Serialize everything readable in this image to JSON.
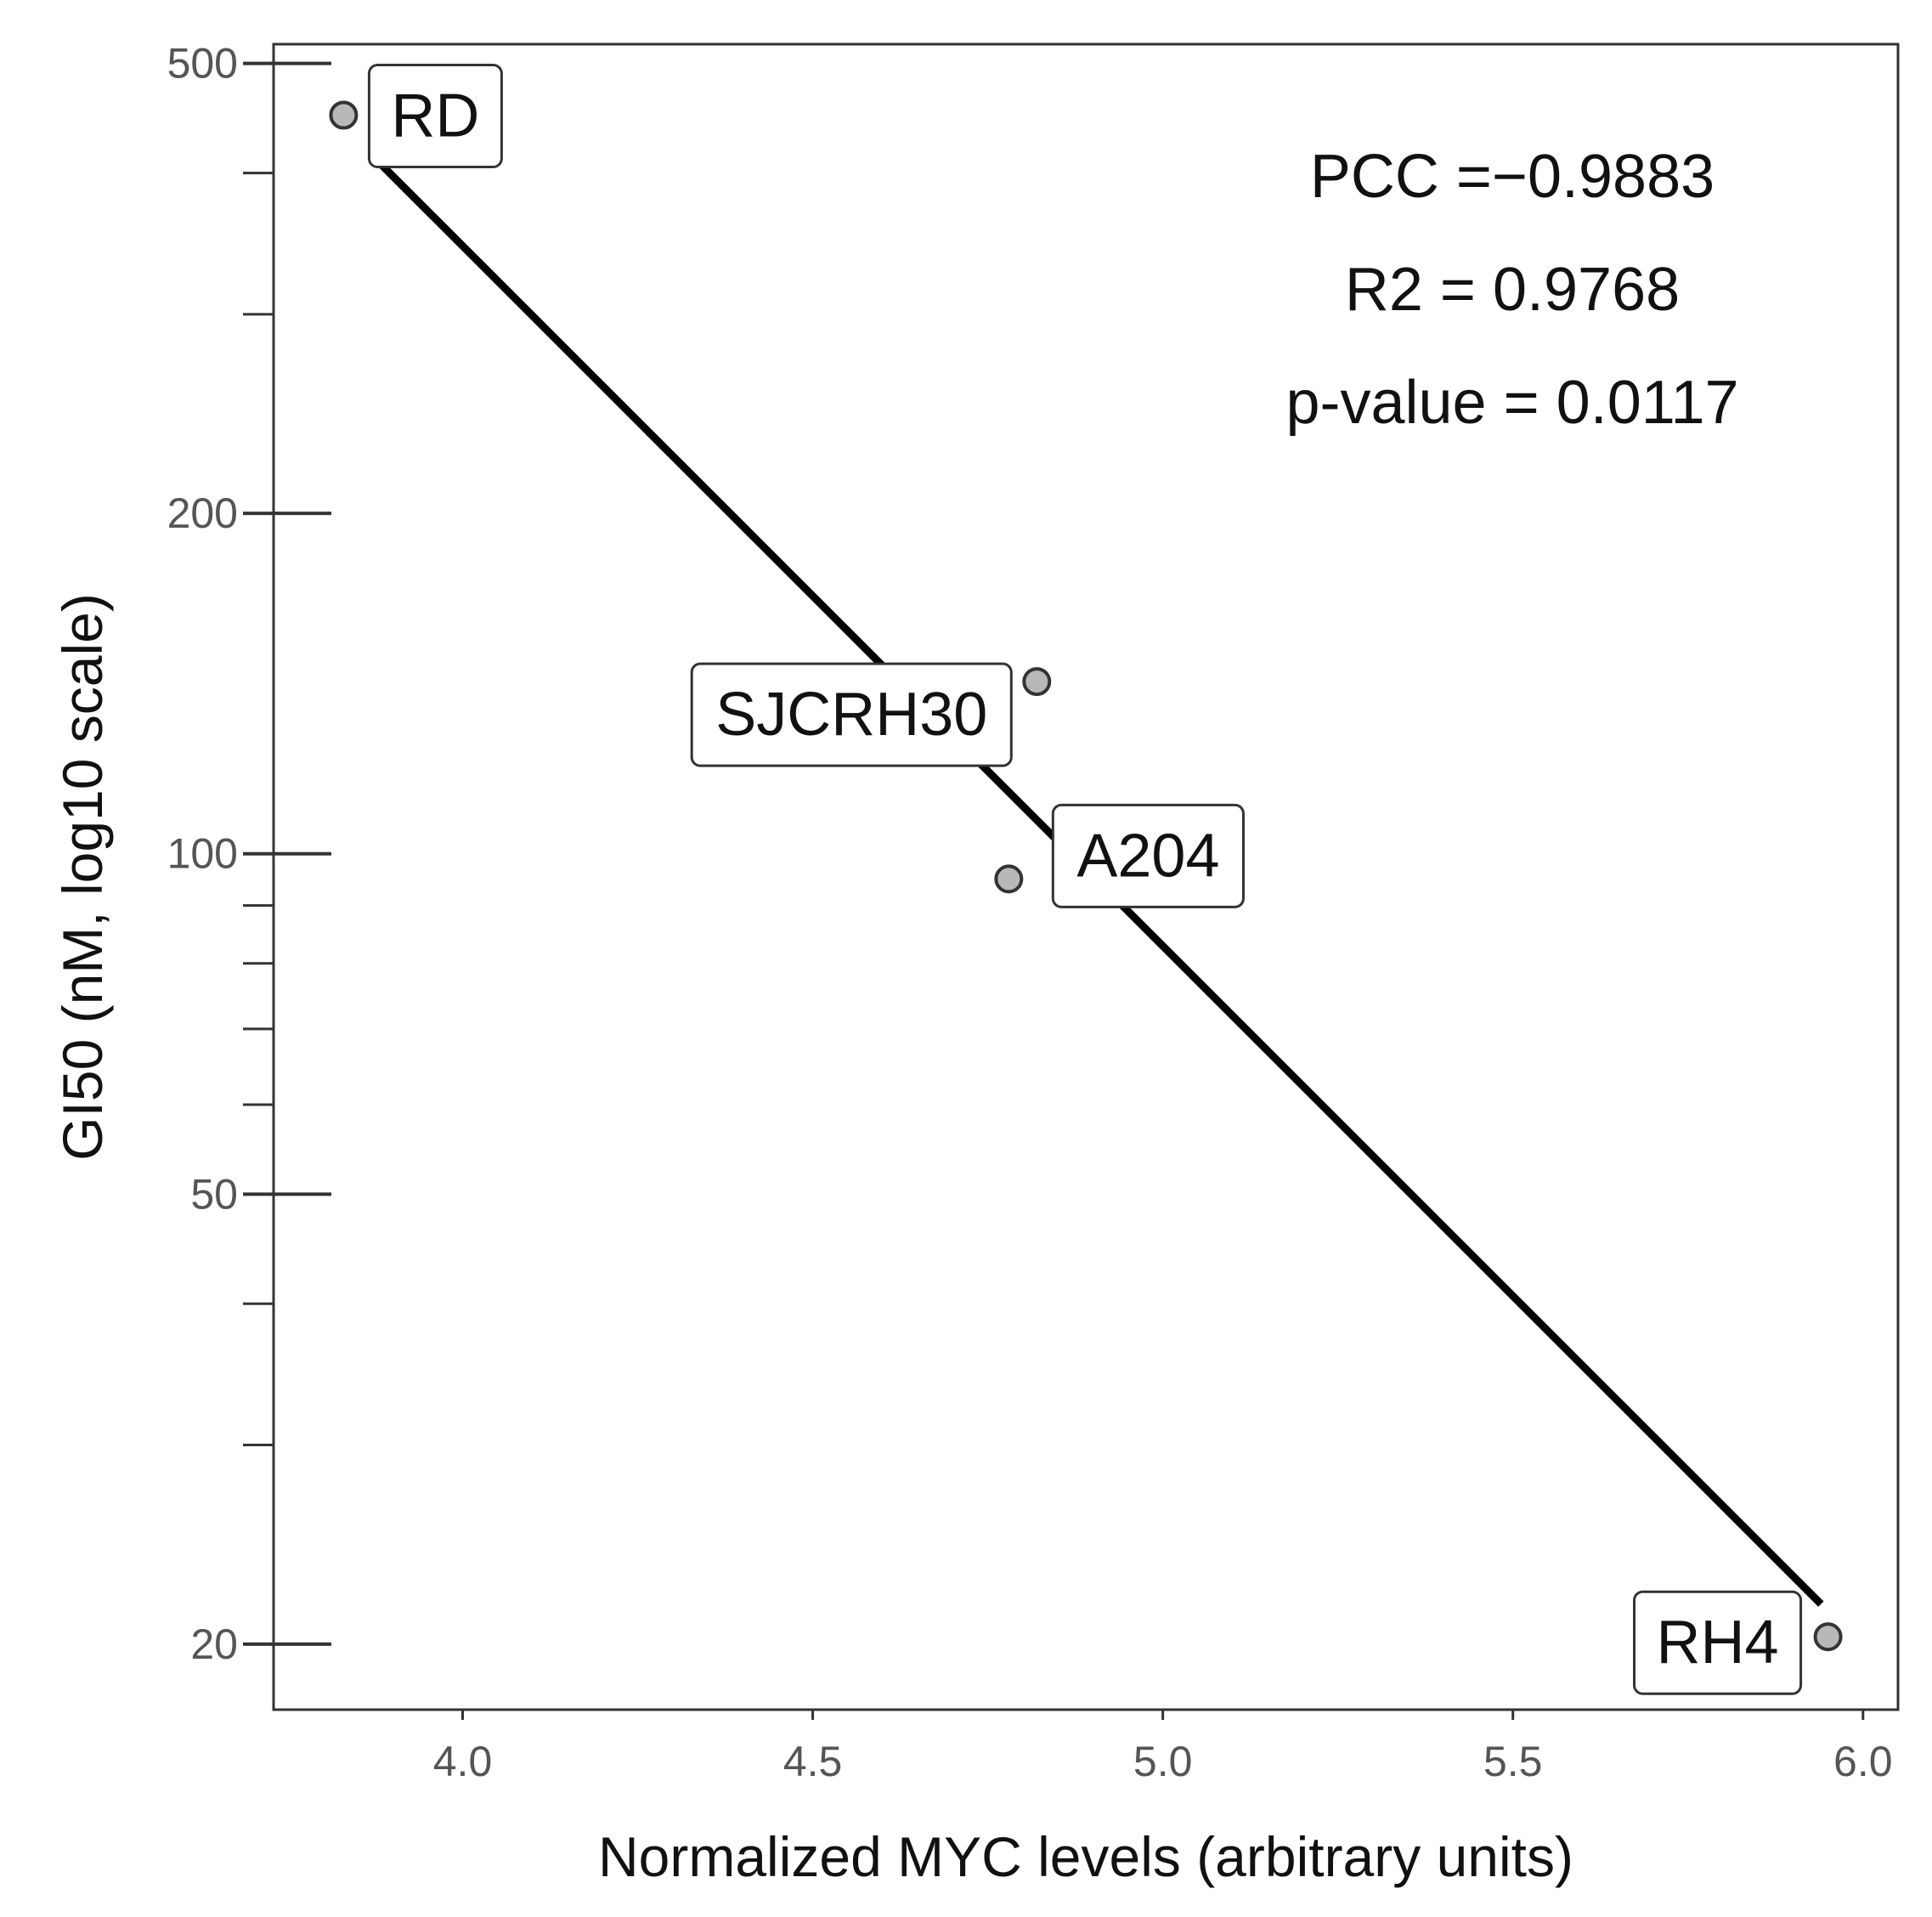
{
  "chart_data": {
    "type": "scatter",
    "title": "",
    "xlabel": "Normalized MYC levels (arbitrary units)",
    "ylabel": "GI50 (nM, log10 scale)",
    "yscale": "log10",
    "xlim": [
      3.73,
      6.05
    ],
    "ylim": [
      17.5,
      520
    ],
    "x_ticks": [
      4.0,
      4.5,
      5.0,
      5.5,
      6.0
    ],
    "x_tick_labels": [
      "4.0",
      "4.5",
      "5.0",
      "5.5",
      "6.0"
    ],
    "y_ticks": [
      20,
      50,
      100,
      200,
      500
    ],
    "y_tick_labels": [
      "20",
      "50",
      "100",
      "200",
      "500"
    ],
    "y_minor_ticks": [
      30,
      40,
      60,
      70,
      80,
      90,
      300,
      400
    ],
    "grid": false,
    "points": [
      {
        "label": "RD",
        "x": 3.83,
        "y": 450
      },
      {
        "label": "SJCRH30",
        "x": 4.82,
        "y": 142
      },
      {
        "label": "A204",
        "x": 4.78,
        "y": 95
      },
      {
        "label": "RH4",
        "x": 5.95,
        "y": 20.3
      }
    ],
    "fit_line": {
      "x": [
        3.87,
        5.94
      ],
      "y": [
        415,
        21.7
      ]
    },
    "annotations": [
      "PCC =−0.9883",
      "R2 = 0.9768",
      "p-value = 0.0117"
    ],
    "colors": {
      "point_fill": "#b8b8b8",
      "point_stroke": "#333333",
      "line": "#000000",
      "axis": "#333333",
      "tick_text": "#555555"
    }
  }
}
